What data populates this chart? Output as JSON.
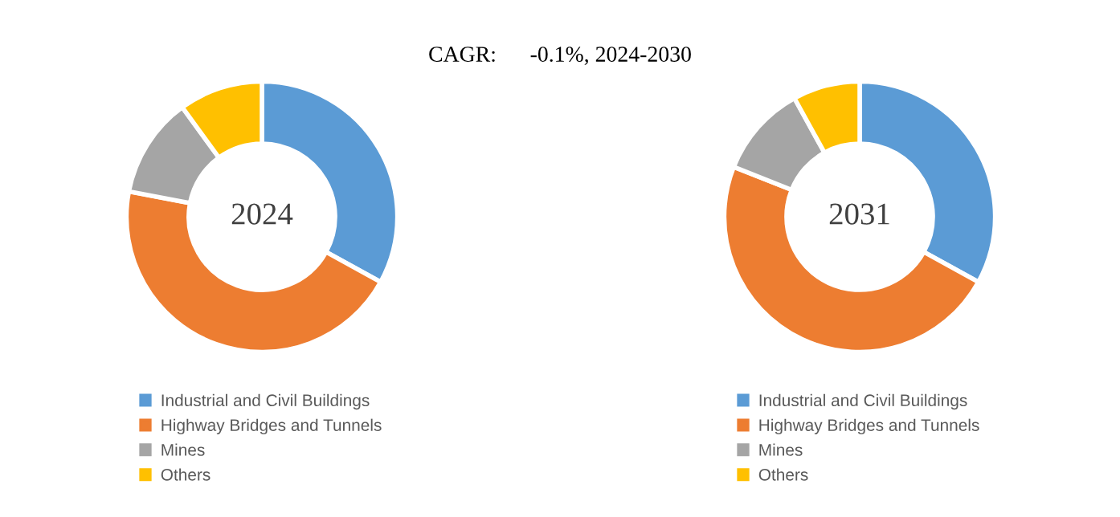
{
  "chart_data": [
    {
      "type": "donut",
      "title": "CAGR:      -0.1%, 2024-2030",
      "annotations": [
        "2024"
      ],
      "categories": [
        "Industrial and Civil Buildings",
        "Highway Bridges and Tunnels",
        "Mines",
        "Others"
      ],
      "values": [
        33,
        45,
        12,
        10
      ],
      "colors": [
        "#5b9bd5",
        "#ed7d31",
        "#a5a5a5",
        "#ffc000"
      ],
      "legend": "bottom"
    },
    {
      "type": "donut",
      "annotations": [
        "2031"
      ],
      "categories": [
        "Industrial and Civil Buildings",
        "Highway Bridges and Tunnels",
        "Mines",
        "Others"
      ],
      "values": [
        33,
        48,
        11,
        8
      ],
      "colors": [
        "#5b9bd5",
        "#ed7d31",
        "#a5a5a5",
        "#ffc000"
      ],
      "legend": "bottom"
    }
  ]
}
